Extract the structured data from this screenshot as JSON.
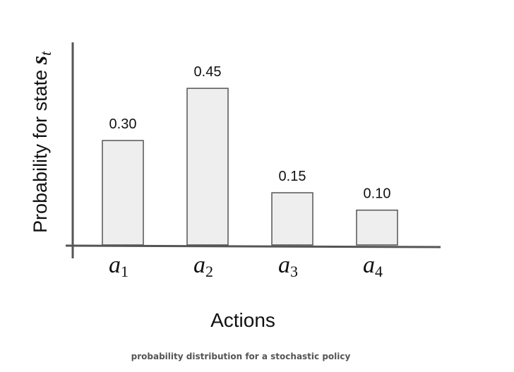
{
  "chart_data": {
    "type": "bar",
    "categories": [
      "a1",
      "a2",
      "a3",
      "a4"
    ],
    "category_labels": [
      {
        "base": "a",
        "sub": "1"
      },
      {
        "base": "a",
        "sub": "2"
      },
      {
        "base": "a",
        "sub": "3"
      },
      {
        "base": "a",
        "sub": "4"
      }
    ],
    "values": [
      0.3,
      0.45,
      0.15,
      0.1
    ],
    "value_labels": [
      "0.30",
      "0.45",
      "0.15",
      "0.10"
    ],
    "xlabel": "Actions",
    "ylabel": {
      "text": "Probability for state ",
      "symbol": "s",
      "sub": "t"
    },
    "ylim": [
      0,
      0.5
    ],
    "grid": false,
    "colors": {
      "bar_fill": "#eeeeee",
      "bar_stroke": "#555555",
      "axis": "#555555",
      "text": "#111111"
    }
  },
  "caption": "probability distribution for a stochastic policy"
}
